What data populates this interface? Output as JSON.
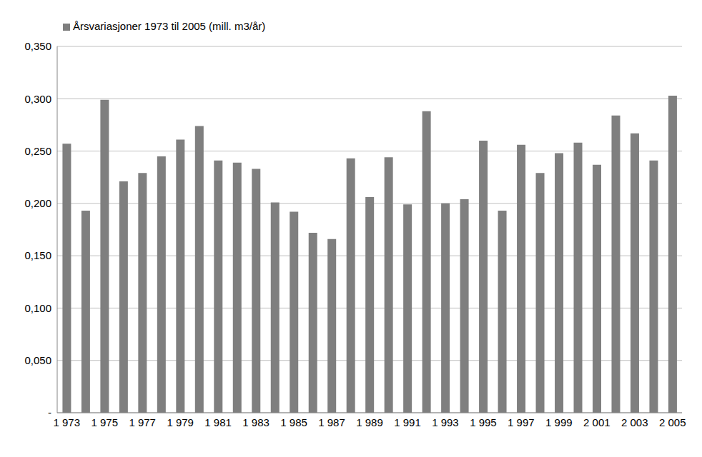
{
  "chart_data": {
    "type": "bar",
    "categories": [
      "1 973",
      null,
      "1 975",
      null,
      "1 977",
      null,
      "1 979",
      null,
      "1 981",
      null,
      "1 983",
      null,
      "1 985",
      null,
      "1 987",
      null,
      "1 989",
      null,
      "1 991",
      null,
      "1 993",
      null,
      "1 995",
      null,
      "1 997",
      null,
      "1 999",
      null,
      "2 001",
      null,
      "2 003",
      null,
      "2 005"
    ],
    "series": [
      {
        "name": "Årsvariasjoner 1973 til 2005 (mill. m3/år)",
        "color": "#7f7f7f",
        "values": [
          0.257,
          0.193,
          0.299,
          0.221,
          0.229,
          0.245,
          0.261,
          0.274,
          0.241,
          0.239,
          0.233,
          0.201,
          0.192,
          0.172,
          0.166,
          0.243,
          0.206,
          0.244,
          0.199,
          0.288,
          0.2,
          0.204,
          0.26,
          0.193,
          0.256,
          0.229,
          0.248,
          0.258,
          0.237,
          0.284,
          0.267,
          0.241,
          0.303
        ]
      }
    ],
    "ylim": [
      0,
      0.35
    ],
    "yticks": [
      {
        "value": 0,
        "label": "-"
      },
      {
        "value": 0.05,
        "label": "0,050"
      },
      {
        "value": 0.1,
        "label": "0,100"
      },
      {
        "value": 0.15,
        "label": "0,150"
      },
      {
        "value": 0.2,
        "label": "0,200"
      },
      {
        "value": 0.25,
        "label": "0,250"
      },
      {
        "value": 0.3,
        "label": "0,300"
      },
      {
        "value": 0.35,
        "label": "0,350"
      }
    ],
    "grid": true,
    "legend": "top-left"
  }
}
